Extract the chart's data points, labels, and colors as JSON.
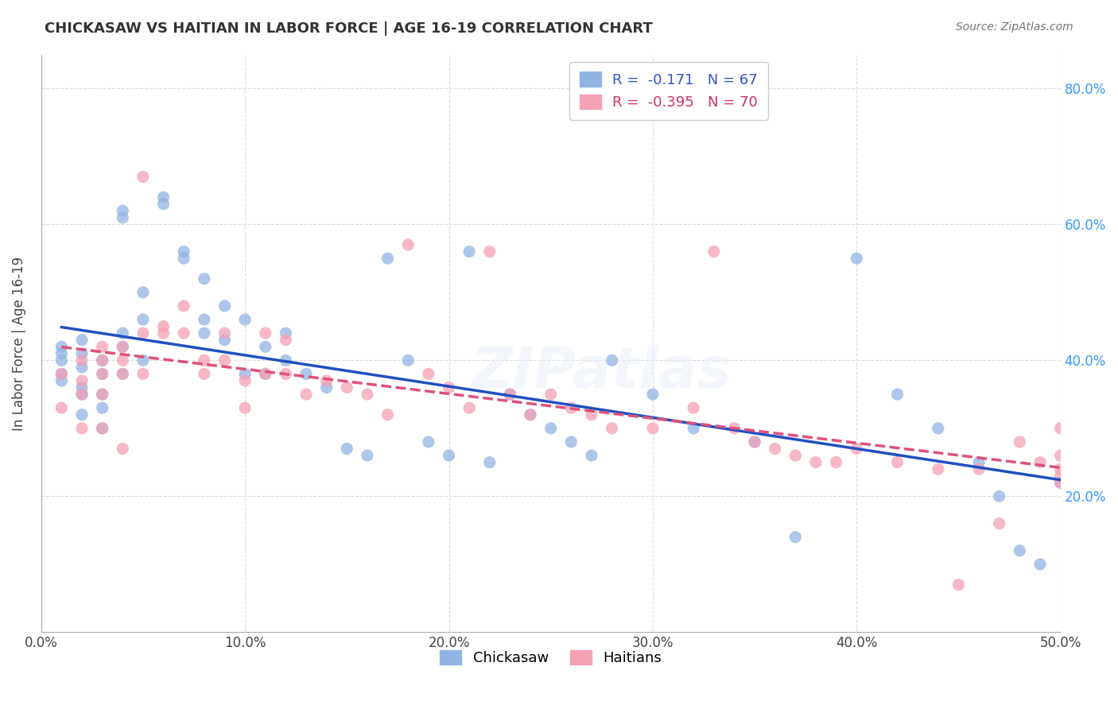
{
  "title": "CHICKASAW VS HAITIAN IN LABOR FORCE | AGE 16-19 CORRELATION CHART",
  "source": "Source: ZipAtlas.com",
  "xlabel": "",
  "ylabel": "In Labor Force | Age 16-19",
  "xlim": [
    0.0,
    0.5
  ],
  "ylim": [
    0.0,
    0.85
  ],
  "xticks": [
    0.0,
    0.1,
    0.2,
    0.3,
    0.4,
    0.5
  ],
  "xticklabels": [
    "0.0%",
    "10.0%",
    "20.0%",
    "30.0%",
    "40.0%",
    "50.0%"
  ],
  "yticks": [
    0.2,
    0.4,
    0.6,
    0.8
  ],
  "yticklabels": [
    "20.0%",
    "40.0%",
    "60.0%",
    "80.0%"
  ],
  "legend_r_chickasaw": "-0.171",
  "legend_n_chickasaw": "67",
  "legend_r_haitian": "-0.395",
  "legend_n_haitian": "70",
  "chickasaw_color": "#92b4e3",
  "haitian_color": "#f4a0b5",
  "trendline_chickasaw_color": "#2050c0",
  "trendline_haitian_color": "#e0507a",
  "watermark": "ZIPatlas",
  "chickasaw_x": [
    0.01,
    0.01,
    0.01,
    0.01,
    0.01,
    0.02,
    0.02,
    0.02,
    0.02,
    0.02,
    0.02,
    0.03,
    0.03,
    0.03,
    0.03,
    0.03,
    0.04,
    0.04,
    0.04,
    0.04,
    0.04,
    0.05,
    0.05,
    0.05,
    0.06,
    0.06,
    0.07,
    0.07,
    0.08,
    0.08,
    0.08,
    0.09,
    0.09,
    0.1,
    0.1,
    0.11,
    0.11,
    0.12,
    0.12,
    0.13,
    0.14,
    0.15,
    0.16,
    0.17,
    0.18,
    0.19,
    0.2,
    0.21,
    0.22,
    0.23,
    0.24,
    0.25,
    0.26,
    0.27,
    0.28,
    0.3,
    0.32,
    0.35,
    0.37,
    0.4,
    0.42,
    0.44,
    0.46,
    0.47,
    0.48,
    0.49,
    0.5
  ],
  "chickasaw_y": [
    0.4,
    0.41,
    0.42,
    0.38,
    0.37,
    0.43,
    0.41,
    0.39,
    0.36,
    0.35,
    0.32,
    0.4,
    0.38,
    0.35,
    0.33,
    0.3,
    0.62,
    0.61,
    0.44,
    0.42,
    0.38,
    0.5,
    0.46,
    0.4,
    0.64,
    0.63,
    0.56,
    0.55,
    0.52,
    0.46,
    0.44,
    0.48,
    0.43,
    0.46,
    0.38,
    0.42,
    0.38,
    0.44,
    0.4,
    0.38,
    0.36,
    0.27,
    0.26,
    0.55,
    0.4,
    0.28,
    0.26,
    0.56,
    0.25,
    0.35,
    0.32,
    0.3,
    0.28,
    0.26,
    0.4,
    0.35,
    0.3,
    0.28,
    0.14,
    0.55,
    0.35,
    0.3,
    0.25,
    0.2,
    0.12,
    0.1,
    0.22
  ],
  "haitian_x": [
    0.01,
    0.01,
    0.02,
    0.02,
    0.02,
    0.02,
    0.03,
    0.03,
    0.03,
    0.03,
    0.03,
    0.04,
    0.04,
    0.04,
    0.04,
    0.05,
    0.05,
    0.05,
    0.06,
    0.06,
    0.07,
    0.07,
    0.08,
    0.08,
    0.09,
    0.09,
    0.1,
    0.1,
    0.11,
    0.11,
    0.12,
    0.12,
    0.13,
    0.14,
    0.15,
    0.16,
    0.17,
    0.18,
    0.19,
    0.2,
    0.21,
    0.22,
    0.23,
    0.24,
    0.25,
    0.26,
    0.27,
    0.28,
    0.3,
    0.32,
    0.33,
    0.34,
    0.35,
    0.36,
    0.37,
    0.38,
    0.39,
    0.4,
    0.42,
    0.44,
    0.45,
    0.46,
    0.47,
    0.48,
    0.49,
    0.5,
    0.5,
    0.5,
    0.5,
    0.5
  ],
  "haitian_y": [
    0.38,
    0.33,
    0.4,
    0.37,
    0.35,
    0.3,
    0.42,
    0.4,
    0.38,
    0.35,
    0.3,
    0.42,
    0.4,
    0.38,
    0.27,
    0.67,
    0.44,
    0.38,
    0.45,
    0.44,
    0.48,
    0.44,
    0.4,
    0.38,
    0.44,
    0.4,
    0.37,
    0.33,
    0.44,
    0.38,
    0.43,
    0.38,
    0.35,
    0.37,
    0.36,
    0.35,
    0.32,
    0.57,
    0.38,
    0.36,
    0.33,
    0.56,
    0.35,
    0.32,
    0.35,
    0.33,
    0.32,
    0.3,
    0.3,
    0.33,
    0.56,
    0.3,
    0.28,
    0.27,
    0.26,
    0.25,
    0.25,
    0.27,
    0.25,
    0.24,
    0.07,
    0.24,
    0.16,
    0.28,
    0.25,
    0.24,
    0.23,
    0.22,
    0.26,
    0.3
  ]
}
